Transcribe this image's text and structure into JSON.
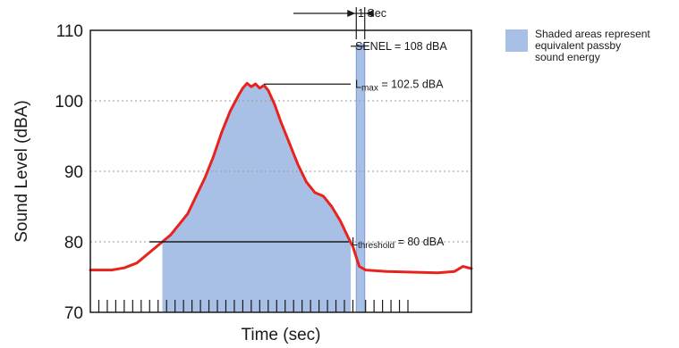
{
  "chart_data": {
    "type": "area",
    "xlabel": "Time (sec)",
    "ylabel": "Sound Level (dBA)",
    "ylim": [
      70,
      110
    ],
    "yticks": [
      "70",
      "80",
      "90",
      "100",
      "110"
    ],
    "grid": "dotted horizontal at 80, 90, 100",
    "x_ticks_labeled": false,
    "series": [
      {
        "values": [
          {
            "x": 0,
            "y": 76.0
          },
          {
            "x": 5,
            "y": 76.0
          },
          {
            "x": 8,
            "y": 76.3
          },
          {
            "x": 11,
            "y": 77.0
          },
          {
            "x": 13,
            "y": 78.0
          },
          {
            "x": 15,
            "y": 79.0
          },
          {
            "x": 17,
            "y": 80.0
          },
          {
            "x": 19,
            "y": 81.0
          },
          {
            "x": 21,
            "y": 82.5
          },
          {
            "x": 23,
            "y": 84.0
          },
          {
            "x": 25,
            "y": 86.5
          },
          {
            "x": 27,
            "y": 89.0
          },
          {
            "x": 29,
            "y": 92.0
          },
          {
            "x": 31,
            "y": 95.5
          },
          {
            "x": 33,
            "y": 98.5
          },
          {
            "x": 35,
            "y": 100.8
          },
          {
            "x": 36,
            "y": 101.8
          },
          {
            "x": 37,
            "y": 102.5
          },
          {
            "x": 38,
            "y": 102.0
          },
          {
            "x": 39,
            "y": 102.4
          },
          {
            "x": 40,
            "y": 101.8
          },
          {
            "x": 41,
            "y": 102.2
          },
          {
            "x": 42,
            "y": 101.5
          },
          {
            "x": 43.5,
            "y": 99.5
          },
          {
            "x": 45,
            "y": 97.0
          },
          {
            "x": 47,
            "y": 94.0
          },
          {
            "x": 49,
            "y": 91.0
          },
          {
            "x": 51,
            "y": 88.5
          },
          {
            "x": 53,
            "y": 87.0
          },
          {
            "x": 55,
            "y": 86.5
          },
          {
            "x": 57,
            "y": 85.0
          },
          {
            "x": 59,
            "y": 83.0
          },
          {
            "x": 61,
            "y": 80.5
          },
          {
            "x": 62,
            "y": 79.3
          },
          {
            "x": 63.5,
            "y": 76.5
          },
          {
            "x": 65,
            "y": 76.0
          },
          {
            "x": 70,
            "y": 75.8
          },
          {
            "x": 76,
            "y": 75.7
          },
          {
            "x": 82,
            "y": 75.6
          },
          {
            "x": 86,
            "y": 75.8
          },
          {
            "x": 88,
            "y": 76.5
          },
          {
            "x": 90,
            "y": 76.2
          }
        ]
      }
    ],
    "shaded_region": {
      "x_start": 17,
      "x_end": 61.5,
      "y_max": 80
    },
    "senel_bar": {
      "x_start": 62.8,
      "x_end": 64.8,
      "value": 108
    },
    "lmax": 102.5,
    "threshold": 80,
    "annotations": {
      "one_sec": "1 Sec",
      "senel": "SENEL = 108 dBA",
      "lmax_main": "L",
      "lmax_sub": "max",
      "lmax_value": " = 102.5 dBA",
      "threshold_main": "L",
      "threshold_sub": "threshold",
      "threshold_value": " = 80 dBA"
    },
    "legend": {
      "position": "top-right",
      "lines": [
        "Shaded areas represent",
        "equivalent passby",
        "sound energy"
      ]
    },
    "colors": {
      "curve": "#e8231e",
      "fill": "#a9c0e6",
      "fill_dark": "#7f9ccf",
      "axis": "#1a1a1a",
      "grid": "#9a9a9a"
    }
  }
}
